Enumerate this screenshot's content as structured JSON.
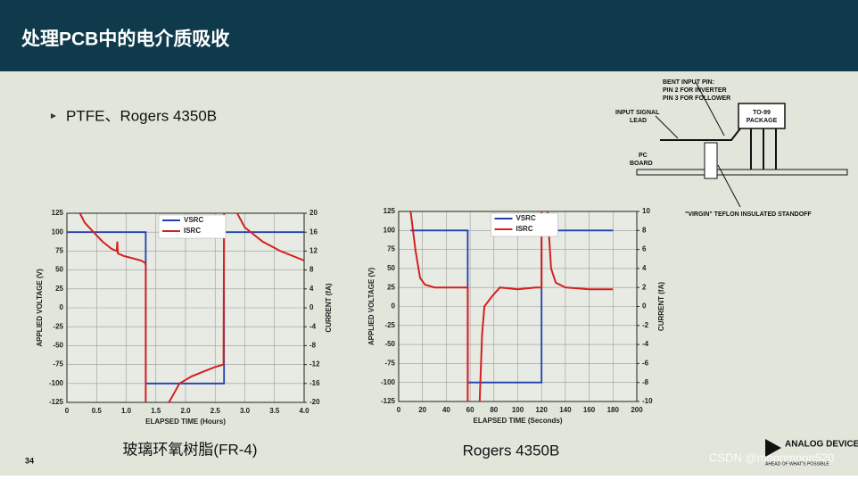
{
  "header": {
    "title": "处理PCB中的电介质吸收"
  },
  "bullet": "PTFE、Rogers 4350B",
  "diagram": {
    "labels": [
      "BENT INPUT PIN:",
      "PIN 2 FOR INVERTER",
      "PIN 3 FOR FOLLOWER",
      "INPUT SIGNAL",
      "LEAD",
      "TO-99",
      "PACKAGE",
      "PC",
      "BOARD",
      "\"VIRGIN\" TEFLON INSULATED STANDOFF"
    ]
  },
  "captions": [
    "玻璃环氧树脂(FR-4)",
    "Rogers 4350B"
  ],
  "footer": {
    "page": "34",
    "logo": "ANALOG DEVICES",
    "tagline": "AHEAD OF WHAT'S POSSIBLE",
    "watermark": "CSDN @moonmoon520"
  },
  "chart_data": [
    {
      "type": "line",
      "xlabel": "ELAPSED TIME (Hours)",
      "ylabel": "APPLIED VOLTAGE (V)",
      "y2label": "CURRENT (fA)",
      "xlim": [
        0,
        4
      ],
      "xticks": [
        0,
        0.5,
        {
          "value": 1,
          "label": "1.0"
        },
        1.5,
        {
          "value": 2,
          "label": "2.0"
        },
        2.5,
        {
          "value": 3,
          "label": "3.0"
        },
        3.5,
        {
          "value": 4,
          "label": "4.0"
        }
      ],
      "ylim": [
        -125,
        125
      ],
      "yticks": [
        -125,
        -100,
        -75,
        -50,
        -25,
        0,
        25,
        50,
        75,
        100,
        125
      ],
      "y2lim": [
        -20,
        20
      ],
      "y2ticks": [
        -20,
        -16,
        -12,
        -8,
        -4,
        0,
        4,
        8,
        12,
        16,
        20
      ],
      "grid": true,
      "series": [
        {
          "name": "VSRC",
          "color": "#1f3fae",
          "x": [
            0,
            1.33,
            1.33,
            2.65,
            2.65,
            4
          ],
          "values": [
            100,
            100,
            -100,
            -100,
            100,
            100
          ]
        },
        {
          "name": "ISRC",
          "color": "#d42020",
          "axis": "y2",
          "x": [
            0.22,
            0.3,
            0.45,
            0.6,
            0.75,
            0.84,
            0.85,
            0.86,
            0.95,
            1.1,
            1.25,
            1.32,
            1.33,
            1.33,
            1.5,
            1.72,
            1.9,
            2.1,
            2.3,
            2.5,
            2.64,
            2.65,
            2.8,
            2.87,
            3.0,
            3.3,
            3.6,
            4.0
          ],
          "values": [
            20,
            18,
            16,
            14,
            12.5,
            12,
            14,
            11.5,
            11,
            10.5,
            10,
            9.5,
            9,
            -20,
            null,
            -20,
            -16,
            -14.5,
            -13.5,
            -12.5,
            -12,
            20,
            null,
            20,
            17,
            14,
            12,
            10
          ]
        }
      ]
    },
    {
      "type": "line",
      "xlabel": "ELAPSED TIME (Seconds)",
      "ylabel": "APPLIED VOLTAGE (V)",
      "y2label": "CURRENT (fA)",
      "xlim": [
        0,
        200
      ],
      "xticks": [
        0,
        20,
        40,
        60,
        80,
        100,
        120,
        140,
        160,
        180,
        200
      ],
      "ylim": [
        -125,
        125
      ],
      "yticks": [
        -125,
        -100,
        -75,
        -50,
        -25,
        0,
        25,
        50,
        75,
        100,
        125
      ],
      "y2lim": [
        -10,
        10
      ],
      "y2ticks": [
        -10,
        -8,
        -6,
        -4,
        -2,
        0,
        2,
        4,
        6,
        8,
        10
      ],
      "grid": true,
      "series": [
        {
          "name": "VSRC",
          "color": "#1f3fae",
          "x": [
            10,
            58,
            58,
            120,
            120,
            180
          ],
          "values": [
            100,
            100,
            -100,
            -100,
            100,
            100
          ]
        },
        {
          "name": "ISRC",
          "color": "#d42020",
          "axis": "y2",
          "x": [
            10,
            14,
            18,
            22,
            30,
            40,
            50,
            58,
            58,
            63,
            68,
            70,
            72,
            78,
            85,
            100,
            115,
            120,
            120,
            122,
            125,
            128,
            132,
            140,
            160,
            180
          ],
          "values": [
            10,
            6,
            3,
            2.3,
            2,
            2,
            2,
            2,
            -10,
            null,
            -10,
            -3,
            0,
            1,
            2,
            1.8,
            2,
            2,
            10,
            null,
            10,
            4,
            2.5,
            2,
            1.8,
            1.8
          ]
        }
      ]
    }
  ]
}
